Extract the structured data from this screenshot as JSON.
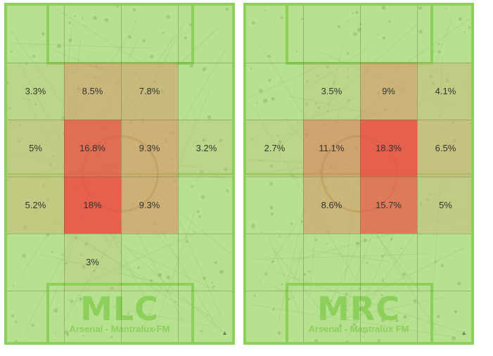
{
  "colors": {
    "pitch": "#b6e18e",
    "line": "#8ccf5a",
    "heat_low": "#ccb97a",
    "heat_high": "#e8584a"
  },
  "panels": [
    {
      "role": "MLC",
      "subtitle": "Arsenal - Mantralux FM",
      "corner_icon": "triangle-up-icon",
      "cells": [
        {
          "row": 1,
          "col": 0,
          "value": "3.3%"
        },
        {
          "row": 1,
          "col": 1,
          "value": "8.5%"
        },
        {
          "row": 1,
          "col": 2,
          "value": "7.8%"
        },
        {
          "row": 2,
          "col": 0,
          "value": "5%"
        },
        {
          "row": 2,
          "col": 1,
          "value": "16.8%"
        },
        {
          "row": 2,
          "col": 2,
          "value": "9.3%"
        },
        {
          "row": 2,
          "col": 3,
          "value": "3.2%"
        },
        {
          "row": 3,
          "col": 0,
          "value": "5.2%"
        },
        {
          "row": 3,
          "col": 1,
          "value": "18%"
        },
        {
          "row": 3,
          "col": 2,
          "value": "9.3%"
        },
        {
          "row": 4,
          "col": 1,
          "value": "3%"
        }
      ]
    },
    {
      "role": "MRC",
      "subtitle": "Arsenal - Mantralux FM",
      "corner_icon": "triangle-up-icon",
      "cells": [
        {
          "row": 1,
          "col": 1,
          "value": "3.5%"
        },
        {
          "row": 1,
          "col": 2,
          "value": "9%"
        },
        {
          "row": 1,
          "col": 3,
          "value": "4.1%"
        },
        {
          "row": 2,
          "col": 0,
          "value": "2.7%"
        },
        {
          "row": 2,
          "col": 1,
          "value": "11.1%"
        },
        {
          "row": 2,
          "col": 2,
          "value": "18.3%"
        },
        {
          "row": 2,
          "col": 3,
          "value": "6.5%"
        },
        {
          "row": 3,
          "col": 1,
          "value": "8.6%"
        },
        {
          "row": 3,
          "col": 2,
          "value": "15.7%"
        },
        {
          "row": 3,
          "col": 3,
          "value": "5%"
        }
      ]
    }
  ]
}
